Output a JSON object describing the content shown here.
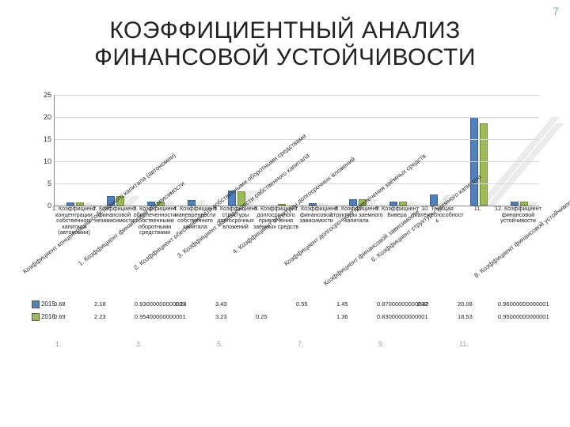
{
  "page_number": "7",
  "title_line1": "КОЭФФИЦИЕНТНЫЙ АНАЛИЗ",
  "title_line2": "ФИНАНСОВОЙ УСТОЙЧИВОСТИ",
  "chart": {
    "type": "bar",
    "ylim": [
      0,
      25
    ],
    "ytick_step": 5,
    "yticks": [
      "0",
      "5",
      "10",
      "15",
      "20",
      "25"
    ],
    "series": [
      {
        "name": "2015",
        "color": "#4f81bd",
        "border": "#3a5f8b"
      },
      {
        "name": "2016",
        "color": "#9bbb59",
        "border": "#71893f"
      }
    ],
    "categories": [
      {
        "n": "1.",
        "label": "Коэффициент концентрации собственного капитала (автономии)",
        "v2015": "0.68",
        "v2016": "0.69"
      },
      {
        "n": "2.",
        "label": "Коэффициент финансовой независимости",
        "v2015": "2.18",
        "v2016": "2.23"
      },
      {
        "n": "3.",
        "label": "Коэффициент обеспеченности собственными оборотными средствами",
        "v2015": "0.93000000000001",
        "v2016": "0.95400000000001"
      },
      {
        "n": "4.",
        "label": "Коэффициент маневренности собственного капитала",
        "v2015": "1.24",
        "v2016": ""
      },
      {
        "n": "5.",
        "label": "Коэффициент структуры долгосрочных вложений",
        "v2015": "3.43",
        "v2016": "3.23"
      },
      {
        "n": "6.",
        "label": "Коэффициент долгосрочного привлечения заёмных средств",
        "v2015": "",
        "v2016": "0.25"
      },
      {
        "n": "7.",
        "label": "Коэффициент финансовой зависимости",
        "v2015": "0.55",
        "v2016": ""
      },
      {
        "n": "8.",
        "label": "Коэффициент структуры заемного капитала",
        "v2015": "1.45",
        "v2016": "1.36"
      },
      {
        "n": "9.",
        "label": "Коэффициент Бивера",
        "v2015": "0.87000000000002",
        "v2016": "0.83000000000001"
      },
      {
        "n": "10.",
        "label": "Текущая платёжеспособность",
        "v2015": "2.42",
        "v2016": ""
      },
      {
        "n": "11.",
        "label": "",
        "v2015": "20.08",
        "v2016": "18.53"
      },
      {
        "n": "12.",
        "label": "Коэффициент финансовой устойчивости",
        "v2015": "0.96000000000001",
        "v2016": "0.95000000000001"
      }
    ],
    "background_color": "#ffffff",
    "grid_color": "#d9d9d9",
    "axis_color": "#888888",
    "label_fontsize": 7.2,
    "diagonal_labels": [
      "Коэффициент концентрации собственного капитала (автономии)",
      "1. Коэффициент финансовой независимости",
      "2. Коэффициент обеспеченности собственными оборотными средствами",
      "3. Коэффициент маневренности собственного капитала",
      "4. Коэффициент структуры долгосрочных вложений",
      "Коэффициент долгосрочного привлечения заёмных средств",
      "6. Коэффициент структуры заемного капитала",
      "Коэффициент финансовой зависимости",
      "8. Коэффициент финансовой устойчивости"
    ]
  }
}
